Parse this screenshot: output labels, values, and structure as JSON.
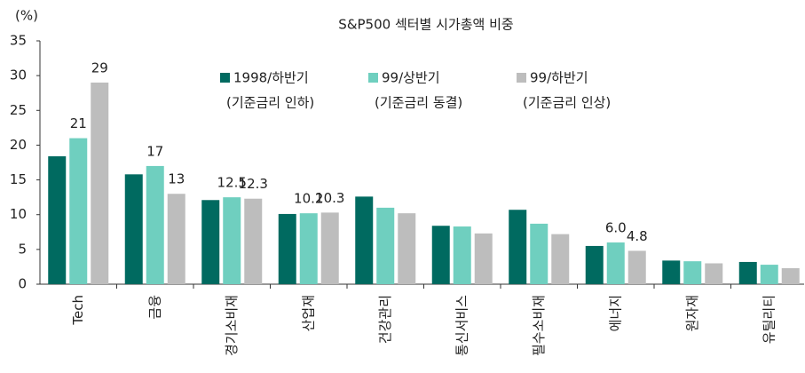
{
  "chart_data": {
    "type": "bar",
    "title": "S&P500 섹터별 시가총액 비중",
    "y_label": "(%)",
    "categories": [
      "Tech",
      "금융",
      "경기소비재",
      "산업재",
      "건강관리",
      "통신서비스",
      "필수소비재",
      "에너지",
      "원자재",
      "유틸리티"
    ],
    "series": [
      {
        "name": "1998/하반기",
        "legend_sublabel": "(기준금리 인하)",
        "color": "#006a60",
        "values": [
          18.4,
          15.8,
          12.1,
          10.1,
          12.6,
          8.4,
          10.7,
          5.5,
          3.4,
          3.2
        ],
        "value_labels": [
          null,
          null,
          null,
          null,
          null,
          null,
          null,
          null,
          null,
          null
        ]
      },
      {
        "name": "99/상반기",
        "legend_sublabel": "(기준금리 동결)",
        "color": "#6fcfbf",
        "values": [
          21,
          17,
          12.5,
          10.2,
          11.0,
          8.3,
          8.7,
          6.0,
          3.3,
          2.8
        ],
        "value_labels": [
          "21",
          "17",
          "12.5",
          "10.2",
          null,
          null,
          null,
          "6.0",
          null,
          null
        ]
      },
      {
        "name": "99/하반기",
        "legend_sublabel": "(기준금리 인상)",
        "color": "#bdbdbd",
        "values": [
          29,
          13,
          12.3,
          10.3,
          10.2,
          7.3,
          7.2,
          4.8,
          3.0,
          2.3
        ],
        "value_labels": [
          "29",
          "13",
          "12.3",
          "10.3",
          null,
          null,
          null,
          "4.8",
          null,
          null
        ]
      }
    ],
    "ylim": [
      0,
      35
    ],
    "yticks": [
      0,
      5,
      10,
      15,
      20,
      25,
      30,
      35
    ],
    "grid": false
  }
}
